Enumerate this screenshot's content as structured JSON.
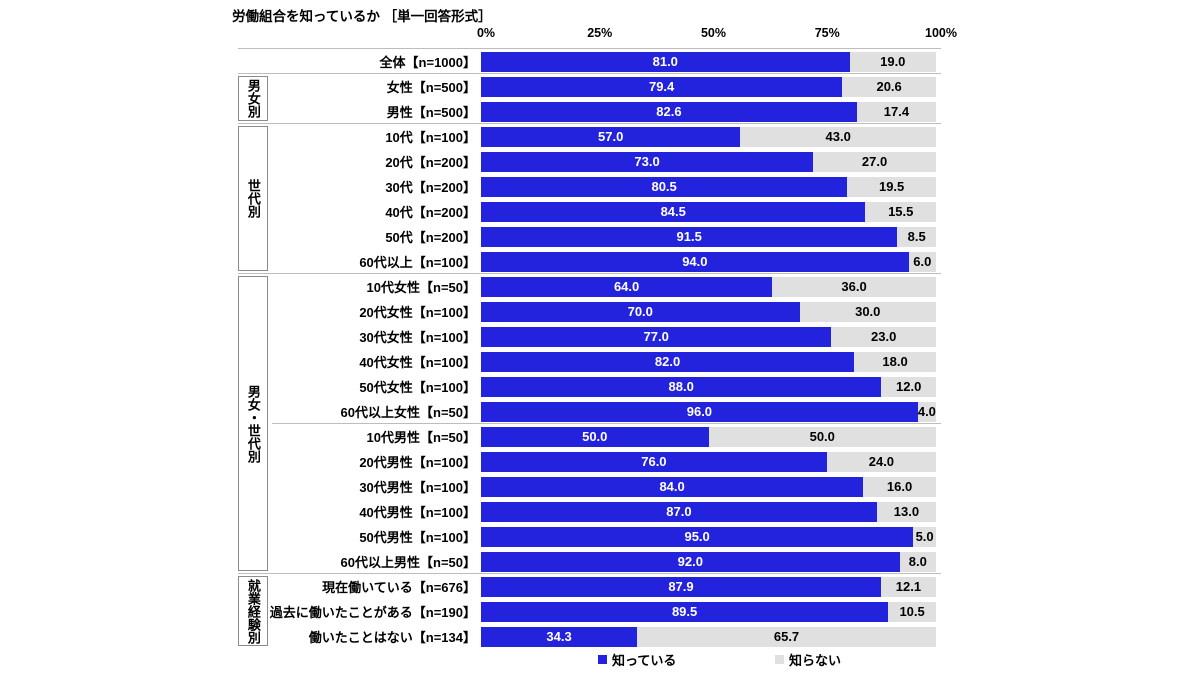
{
  "title": "労働組合を知っているか ［単一回答形式］",
  "colors": {
    "know": "#2323dd",
    "not_know": "#e0e0e0",
    "separator": "#bdbdbd",
    "group_box_border": "#8c8c8c",
    "bar_label_on_blue": "#ffffff",
    "bar_label_on_gray": "#000000"
  },
  "chart_data": {
    "type": "bar",
    "stacked": true,
    "orientation": "horizontal",
    "title": "労働組合を知っているか ［単一回答形式］",
    "xlim": [
      0,
      100
    ],
    "x_ticks": [
      "0%",
      "25%",
      "50%",
      "75%",
      "100%"
    ],
    "grid": false,
    "legend_position": "bottom",
    "value_label_format": "one-decimal",
    "categories": [
      "全体【n=1000】",
      "女性【n=500】",
      "男性【n=500】",
      "10代【n=100】",
      "20代【n=200】",
      "30代【n=200】",
      "40代【n=200】",
      "50代【n=200】",
      "60代以上【n=100】",
      "10代女性【n=50】",
      "20代女性【n=100】",
      "30代女性【n=100】",
      "40代女性【n=100】",
      "50代女性【n=100】",
      "60代以上女性【n=50】",
      "10代男性【n=50】",
      "20代男性【n=100】",
      "30代男性【n=100】",
      "40代男性【n=100】",
      "50代男性【n=100】",
      "60代以上男性【n=50】",
      "現在働いている【n=676】",
      "過去に働いたことがある【n=190】",
      "働いたことはない【n=134】"
    ],
    "series": [
      {
        "name": "知っている",
        "color": "#2323dd",
        "values": [
          81.0,
          79.4,
          82.6,
          57.0,
          73.0,
          80.5,
          84.5,
          91.5,
          94.0,
          64.0,
          70.0,
          77.0,
          82.0,
          88.0,
          96.0,
          50.0,
          76.0,
          84.0,
          87.0,
          95.0,
          92.0,
          87.9,
          89.5,
          34.3
        ]
      },
      {
        "name": "知らない",
        "color": "#e0e0e0",
        "values": [
          19.0,
          20.6,
          17.4,
          43.0,
          27.0,
          19.5,
          15.5,
          8.5,
          6.0,
          36.0,
          30.0,
          23.0,
          18.0,
          12.0,
          4.0,
          50.0,
          24.0,
          16.0,
          13.0,
          5.0,
          8.0,
          12.1,
          10.5,
          65.7
        ]
      }
    ]
  },
  "groups": [
    {
      "label": "男女別",
      "start": 1,
      "end": 2
    },
    {
      "label": "世代別",
      "start": 3,
      "end": 8
    },
    {
      "label": "男女・世代別",
      "start": 9,
      "end": 20,
      "sub_separator_above": 15
    },
    {
      "label": "就業経験別",
      "start": 21,
      "end": 23
    }
  ],
  "legend": [
    {
      "label": "知っている",
      "color": "#2323dd"
    },
    {
      "label": "知らない",
      "color": "#e0e0e0"
    }
  ]
}
